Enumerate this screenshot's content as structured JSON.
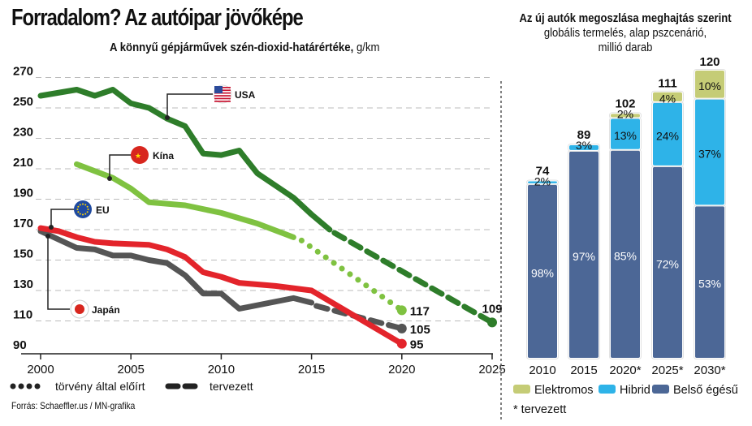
{
  "header": {
    "title": "Forradalom? Az autóipar jövőképe"
  },
  "source": "Forrás: Schaeffler.us / MN-grafika",
  "colors": {
    "usa": "#2e7d2a",
    "china": "#7fc241",
    "eu": "#e3242b",
    "japan": "#555555",
    "electric": "#c5cc76",
    "hybrid": "#2eb3e8",
    "ice": "#4c6796",
    "grid": "#bbbbbb"
  },
  "chart_data": [
    {
      "type": "line",
      "title": "A könnyű gépjárművek szén-dioxid-határértéke,",
      "unit": "g/km",
      "xlabel": "",
      "ylabel": "",
      "xlim": [
        2000,
        2025
      ],
      "ylim": [
        90,
        270
      ],
      "x_ticks": [
        2000,
        2005,
        2010,
        2015,
        2020,
        2025
      ],
      "y_ticks": [
        90,
        110,
        130,
        150,
        170,
        190,
        210,
        230,
        250,
        270
      ],
      "grid": true,
      "legend": [
        {
          "label": "törvény által előírt",
          "style": "dotted"
        },
        {
          "label": "tervezett",
          "style": "dashed"
        }
      ],
      "series": [
        {
          "name": "USA",
          "color_key": "usa",
          "actual": [
            [
              2000,
              258
            ],
            [
              2002,
              262
            ],
            [
              2003,
              258
            ],
            [
              2004,
              262
            ],
            [
              2005,
              253
            ],
            [
              2006,
              250
            ],
            [
              2007,
              243
            ],
            [
              2008,
              238
            ],
            [
              2009,
              220
            ],
            [
              2010,
              219
            ],
            [
              2011,
              222
            ],
            [
              2012,
              207
            ],
            [
              2013,
              199
            ],
            [
              2014,
              191
            ],
            [
              2015,
              180
            ],
            [
              2016,
              170
            ]
          ],
          "projected": {
            "style": "dashed",
            "points": [
              [
                2016,
                170
              ],
              [
                2025,
                109
              ]
            ]
          },
          "end_label": "109"
        },
        {
          "name": "Kína",
          "color_key": "china",
          "actual": [
            [
              2002,
              213
            ],
            [
              2004,
              204
            ],
            [
              2005,
              197
            ],
            [
              2006,
              188
            ],
            [
              2008,
              186
            ],
            [
              2010,
              181
            ],
            [
              2012,
              174
            ],
            [
              2014,
              165
            ]
          ],
          "projected": {
            "style": "dotted",
            "points": [
              [
                2014,
                165
              ],
              [
                2020,
                117
              ]
            ]
          },
          "end_label": "117"
        },
        {
          "name": "EU",
          "color_key": "eu",
          "actual": [
            [
              2000,
              171
            ],
            [
              2001,
              169
            ],
            [
              2002,
              165
            ],
            [
              2003,
              162
            ],
            [
              2004,
              161
            ],
            [
              2006,
              160
            ],
            [
              2007,
              157
            ],
            [
              2008,
              152
            ],
            [
              2009,
              142
            ],
            [
              2010,
              139
            ],
            [
              2011,
              135
            ],
            [
              2013,
              133
            ],
            [
              2015,
              130
            ],
            [
              2020,
              95
            ]
          ],
          "projected": null,
          "end_label": "95"
        },
        {
          "name": "Japán",
          "color_key": "japan",
          "actual": [
            [
              2000,
              169
            ],
            [
              2002,
              158
            ],
            [
              2003,
              157
            ],
            [
              2004,
              153
            ],
            [
              2005,
              153
            ],
            [
              2006,
              150
            ],
            [
              2007,
              148
            ],
            [
              2008,
              140
            ],
            [
              2009,
              128
            ],
            [
              2010,
              128
            ],
            [
              2011,
              118
            ],
            [
              2014,
              125
            ],
            [
              2015,
              122
            ]
          ],
          "projected": {
            "style": "dashed",
            "points": [
              [
                2015,
                122
              ],
              [
                2020,
                105
              ]
            ]
          },
          "end_label": "105"
        }
      ]
    },
    {
      "type": "bar",
      "stacked": true,
      "title": "Az új autók megoszlása meghajtás szerint",
      "subtitle": "globális termelés, alap pszcenárió,",
      "subtitle2": "millió darab",
      "categories": [
        "2010",
        "2015",
        "2020*",
        "2025*",
        "2030*"
      ],
      "totals": [
        74,
        89,
        102,
        111,
        120
      ],
      "series": [
        {
          "name": "Belső égésű",
          "color_key": "ice",
          "percent": [
            98,
            97,
            85,
            72,
            53
          ]
        },
        {
          "name": "Hibrid",
          "color_key": "hybrid",
          "percent": [
            2,
            3,
            13,
            24,
            37
          ]
        },
        {
          "name": "Elektromos",
          "color_key": "electric",
          "percent": [
            0,
            0,
            2,
            4,
            10
          ]
        }
      ],
      "labels": {
        "Belső égésű": [
          "98%",
          "97%",
          "85%",
          "72%",
          "53%"
        ],
        "Hibrid": [
          "2%",
          "3%",
          "13%",
          "24%",
          "37%"
        ],
        "Elektromos": [
          "",
          "",
          "2%",
          "4%",
          "10%"
        ]
      },
      "legend": [
        "Elektromos",
        "Hibrid",
        "Belső égésű"
      ],
      "footnote": "* tervezett",
      "ylim": [
        0,
        120
      ]
    }
  ]
}
